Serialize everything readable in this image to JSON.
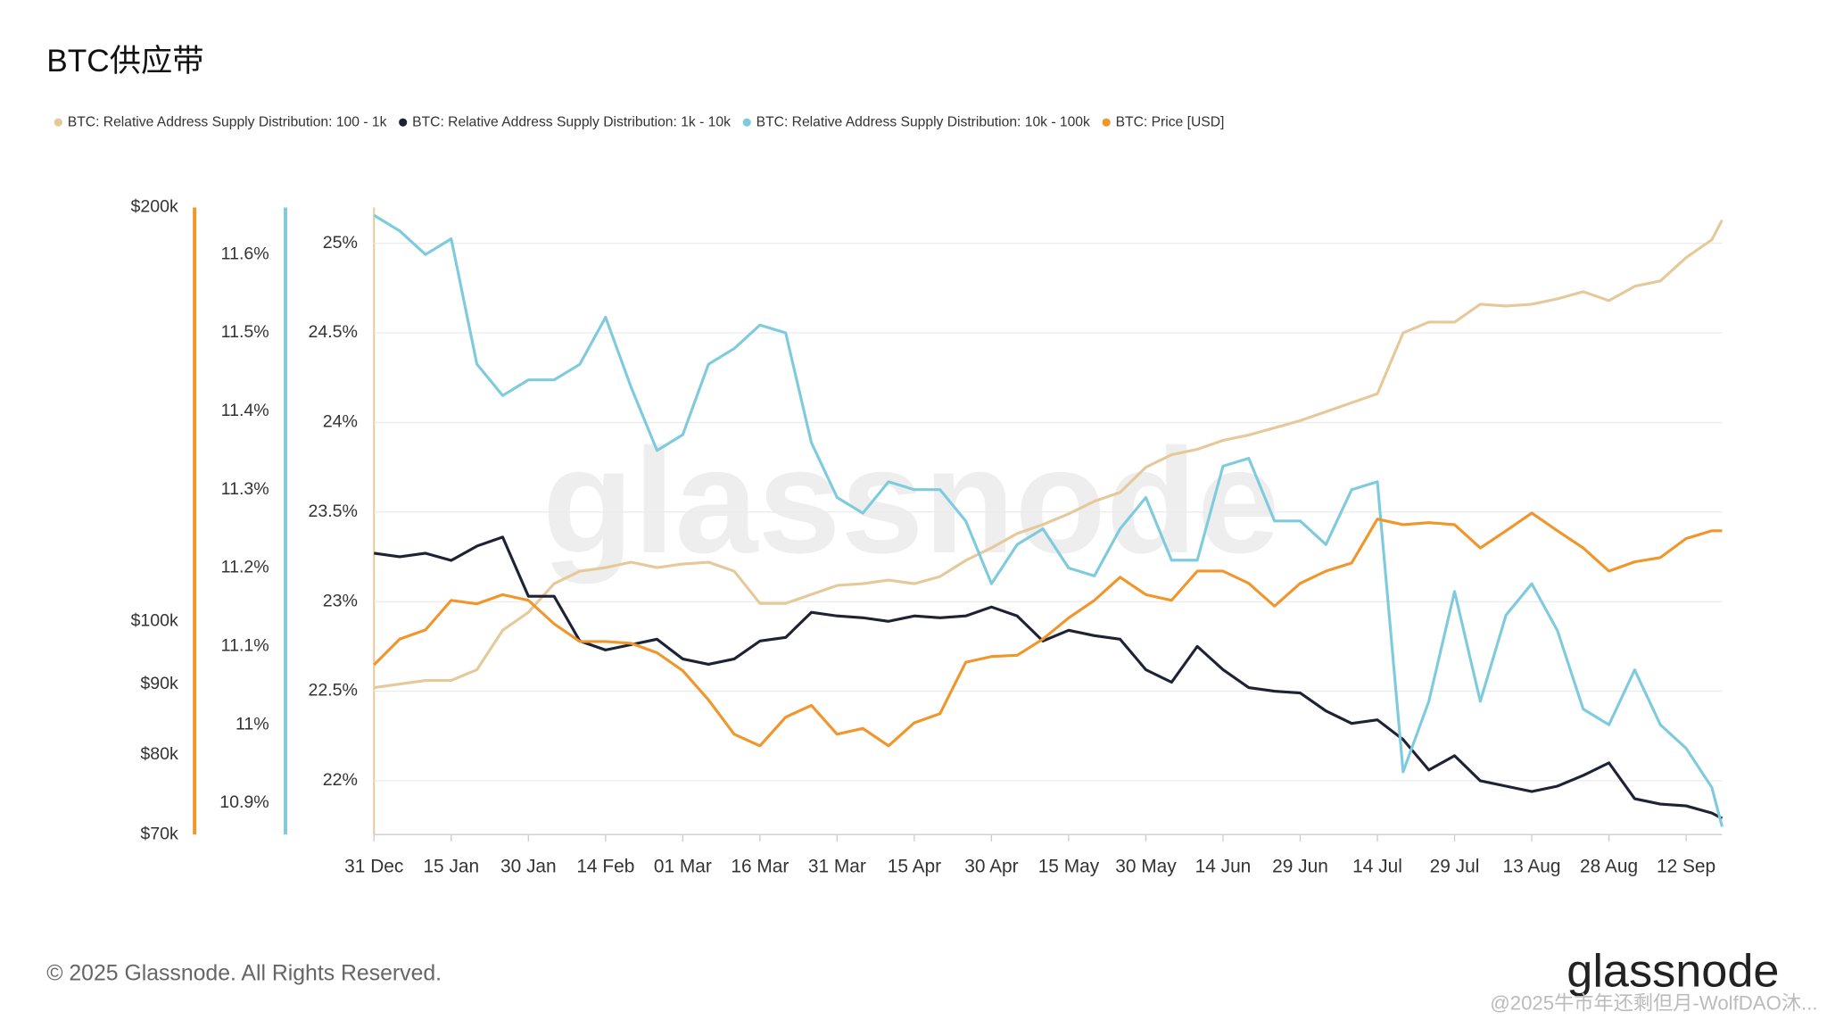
{
  "chart_data": {
    "type": "line",
    "title": "BTC供应带",
    "watermark": "glassnode",
    "footer": "© 2025 Glassnode. All Rights Reserved.",
    "logo": "glassnode",
    "credit": "@2025牛市年还剩但月-WolfDAO沐...",
    "x": [
      0,
      5,
      10,
      15,
      20,
      25,
      30,
      35,
      40,
      45,
      50,
      55,
      60,
      65,
      70,
      75,
      80,
      85,
      90,
      95,
      100,
      105,
      110,
      115,
      120,
      125,
      130,
      135,
      140,
      145,
      150,
      155,
      160,
      165,
      170,
      175,
      180,
      185,
      190,
      195,
      200,
      205,
      210,
      215,
      220,
      225,
      230,
      235,
      240,
      245,
      250,
      255,
      260,
      262
    ],
    "xlim": [
      0,
      262
    ],
    "xticks": [
      {
        "value": 0,
        "label": "31 Dec"
      },
      {
        "value": 15,
        "label": "15 Jan"
      },
      {
        "value": 30,
        "label": "30 Jan"
      },
      {
        "value": 45,
        "label": "14 Feb"
      },
      {
        "value": 60,
        "label": "01 Mar"
      },
      {
        "value": 75,
        "label": "16 Mar"
      },
      {
        "value": 90,
        "label": "31 Mar"
      },
      {
        "value": 105,
        "label": "15 Apr"
      },
      {
        "value": 120,
        "label": "30 Apr"
      },
      {
        "value": 135,
        "label": "15 May"
      },
      {
        "value": 150,
        "label": "30 May"
      },
      {
        "value": 165,
        "label": "14 Jun"
      },
      {
        "value": 180,
        "label": "29 Jun"
      },
      {
        "value": 195,
        "label": "14 Jul"
      },
      {
        "value": 210,
        "label": "29 Jul"
      },
      {
        "value": 225,
        "label": "13 Aug"
      },
      {
        "value": 240,
        "label": "28 Aug"
      },
      {
        "value": 255,
        "label": "12 Sep"
      }
    ],
    "ylim": [
      21.7,
      25.2
    ],
    "yticks": [
      {
        "value": 22,
        "label": "22%"
      },
      {
        "value": 22.5,
        "label": "22.5%"
      },
      {
        "value": 23,
        "label": "23%"
      },
      {
        "value": 23.5,
        "label": "23.5%"
      },
      {
        "value": 24,
        "label": "24%"
      },
      {
        "value": 24.5,
        "label": "24.5%"
      },
      {
        "value": 25,
        "label": "25%"
      }
    ],
    "y2lim": [
      10.86,
      11.66
    ],
    "y2ticks": [
      {
        "value": 10.9,
        "label": "10.9%"
      },
      {
        "value": 11,
        "label": "11%"
      },
      {
        "value": 11.1,
        "label": "11.1%"
      },
      {
        "value": 11.2,
        "label": "11.2%"
      },
      {
        "value": 11.3,
        "label": "11.3%"
      },
      {
        "value": 11.4,
        "label": "11.4%"
      },
      {
        "value": 11.5,
        "label": "11.5%"
      },
      {
        "value": 11.6,
        "label": "11.6%"
      }
    ],
    "y3lim": [
      70000,
      200000
    ],
    "y3log": true,
    "y3ticks": [
      {
        "value": 70000,
        "label": "$70k"
      },
      {
        "value": 80000,
        "label": "$80k"
      },
      {
        "value": 90000,
        "label": "$90k"
      },
      {
        "value": 100000,
        "label": "$100k"
      },
      {
        "value": 200000,
        "label": "$200k"
      }
    ],
    "grid": true,
    "legend": "top",
    "series": [
      {
        "name": "BTC: Relative Address Supply Distribution: 100 - 1k",
        "color": "#e6c99a",
        "axis": "y",
        "values": [
          22.52,
          22.54,
          22.56,
          22.56,
          22.62,
          22.84,
          22.94,
          23.1,
          23.17,
          23.19,
          23.22,
          23.19,
          23.21,
          23.22,
          23.17,
          22.99,
          22.99,
          23.04,
          23.09,
          23.1,
          23.12,
          23.1,
          23.14,
          23.23,
          23.3,
          23.38,
          23.43,
          23.49,
          23.56,
          23.61,
          23.75,
          23.82,
          23.85,
          23.9,
          23.93,
          23.97,
          24.01,
          24.06,
          24.11,
          24.16,
          24.5,
          24.56,
          24.56,
          24.66,
          24.65,
          24.66,
          24.69,
          24.73,
          24.68,
          24.76,
          24.79,
          24.92,
          25.02,
          25.13
        ]
      },
      {
        "name": "BTC: Relative Address Supply Distribution: 1k - 10k",
        "color": "#1e2235",
        "axis": "y",
        "values": [
          23.27,
          23.25,
          23.27,
          23.23,
          23.31,
          23.36,
          23.03,
          23.03,
          22.78,
          22.73,
          22.76,
          22.79,
          22.68,
          22.65,
          22.68,
          22.78,
          22.8,
          22.94,
          22.92,
          22.91,
          22.89,
          22.92,
          22.91,
          22.92,
          22.97,
          22.92,
          22.78,
          22.84,
          22.81,
          22.79,
          22.62,
          22.55,
          22.75,
          22.62,
          22.52,
          22.5,
          22.49,
          22.39,
          22.32,
          22.34,
          22.23,
          22.06,
          22.14,
          22.0,
          21.97,
          21.94,
          21.97,
          22.03,
          22.1,
          21.9,
          21.87,
          21.86,
          21.82,
          21.79
        ]
      },
      {
        "name": "BTC: Relative Address Supply Distribution: 10k - 100k",
        "color": "#7ecbde",
        "axis": "y2",
        "values": [
          11.65,
          11.63,
          11.6,
          11.62,
          11.46,
          11.42,
          11.44,
          11.44,
          11.46,
          11.52,
          11.43,
          11.35,
          11.37,
          11.46,
          11.48,
          11.51,
          11.5,
          11.36,
          11.29,
          11.27,
          11.31,
          11.3,
          11.3,
          11.26,
          11.18,
          11.23,
          11.25,
          11.2,
          11.19,
          11.25,
          11.29,
          11.21,
          11.21,
          11.33,
          11.34,
          11.26,
          11.26,
          11.23,
          11.3,
          11.31,
          10.94,
          11.03,
          11.17,
          11.03,
          11.14,
          11.18,
          11.12,
          11.02,
          11.0,
          11.07,
          11.0,
          10.97,
          10.92,
          10.87
        ]
      },
      {
        "name": "BTC: Price [USD]",
        "color": "#f0962a",
        "axis": "y3",
        "values": [
          93000,
          97100,
          98600,
          103600,
          103000,
          104600,
          103600,
          99600,
          96700,
          96700,
          96400,
          94900,
          92100,
          87700,
          82800,
          81200,
          85200,
          86900,
          82800,
          83600,
          81200,
          84400,
          85700,
          93400,
          94300,
          94500,
          97100,
          100600,
          103600,
          107700,
          104600,
          103600,
          108800,
          108800,
          106600,
          102600,
          106600,
          108800,
          110300,
          118700,
          117600,
          118000,
          117600,
          113100,
          116400,
          119900,
          116400,
          113100,
          108800,
          110500,
          111300,
          114900,
          116400,
          116400
        ]
      }
    ]
  }
}
